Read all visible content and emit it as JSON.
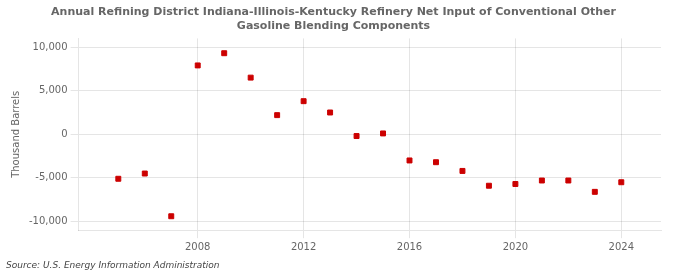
{
  "chart_data": {
    "type": "scatter",
    "title": "Annual Refining District Indiana-Illinois-Kentucky Refinery Net Input of Conventional Other\nGasoline Blending Components",
    "ylabel": "Thousand Barrels",
    "annotation": "Source: U.S. Energy Information Administration",
    "x": [
      2005,
      2006,
      2007,
      2008,
      2009,
      2010,
      2011,
      2012,
      2013,
      2014,
      2015,
      2016,
      2017,
      2018,
      2019,
      2020,
      2021,
      2022,
      2023,
      2024
    ],
    "values": [
      -5100,
      -4500,
      -9400,
      7900,
      9300,
      6500,
      2200,
      3800,
      2500,
      -200,
      100,
      -3000,
      -3200,
      -4200,
      -5900,
      -5700,
      -5300,
      -5300,
      -6600,
      -5500
    ],
    "color": "#cc0000",
    "marker": "square",
    "xlim": [
      2003.5,
      2025.5
    ],
    "xticks": [
      2008,
      2012,
      2016,
      2020,
      2024
    ],
    "ylim": [
      -11000,
      11000
    ],
    "yticks": [
      {
        "value": -10000,
        "label": "-10,000"
      },
      {
        "value": -5000,
        "label": "-5,000"
      },
      0,
      {
        "value": 5000,
        "label": "5,000"
      },
      {
        "value": 10000,
        "label": "10,000"
      }
    ],
    "grid": true
  }
}
